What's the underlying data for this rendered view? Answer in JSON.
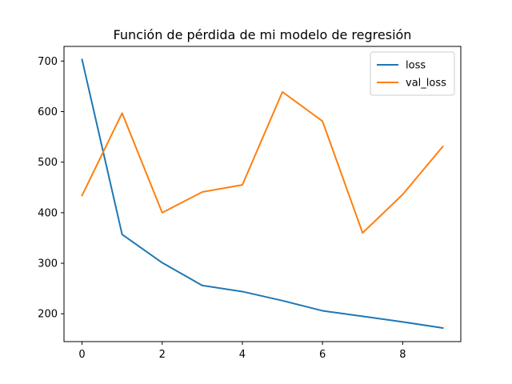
{
  "chart_data": {
    "type": "line",
    "title": "Función de pérdida de mi modelo de regresión",
    "xlabel": "",
    "ylabel": "",
    "x": [
      0,
      1,
      2,
      3,
      4,
      5,
      6,
      7,
      8,
      9
    ],
    "series": [
      {
        "name": "loss",
        "color": "#1f77b4",
        "values": [
          703,
          357,
          301,
          256,
          244,
          226,
          206,
          195,
          184,
          172
        ]
      },
      {
        "name": "val_loss",
        "color": "#ff7f0e",
        "values": [
          434,
          597,
          400,
          441,
          455,
          639,
          581,
          360,
          436,
          531
        ]
      }
    ],
    "xlim": [
      -0.45,
      9.45
    ],
    "ylim": [
      145,
      729
    ],
    "xticks": [
      0,
      2,
      4,
      6,
      8
    ],
    "yticks": [
      200,
      300,
      400,
      500,
      600,
      700
    ],
    "grid": false,
    "legend_position": "top-right"
  }
}
